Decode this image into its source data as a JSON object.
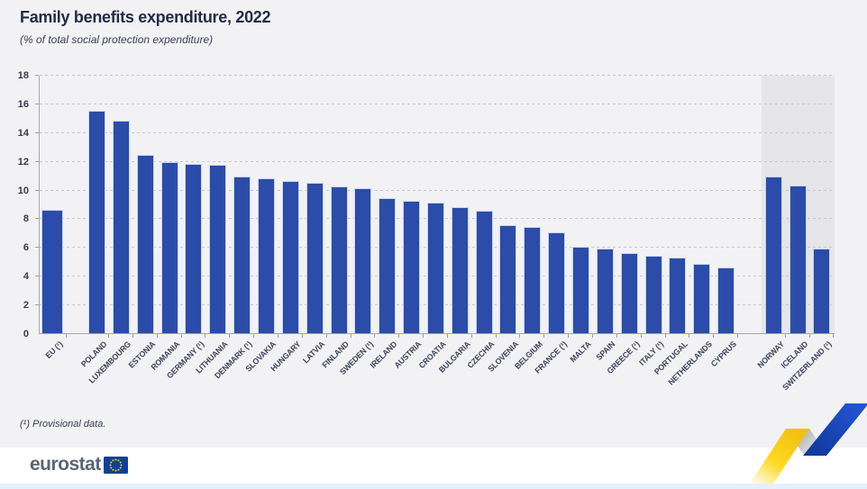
{
  "header": {
    "title": "Family benefits expenditure, 2022",
    "subtitle": "(% of total social protection expenditure)"
  },
  "chart_data": {
    "type": "bar",
    "title": "Family benefits expenditure, 2022",
    "subtitle": "(% of total social protection expenditure)",
    "ylabel": "% of total social protection expenditure",
    "xlabel": "",
    "ylim": [
      0,
      18
    ],
    "yticks": [
      0,
      2,
      4,
      6,
      8,
      10,
      12,
      14,
      16,
      18
    ],
    "grid": "horizontal-dashed",
    "legend": "none",
    "groups": [
      {
        "name": "eu-aggregate",
        "shaded": false,
        "bars": [
          {
            "label": "EU (¹)",
            "value": 8.6
          }
        ]
      },
      {
        "name": "eu-members",
        "shaded": false,
        "bars": [
          {
            "label": "POLAND",
            "value": 15.5
          },
          {
            "label": "LUXEMBOURG",
            "value": 14.8
          },
          {
            "label": "ESTONIA",
            "value": 12.4
          },
          {
            "label": "ROMANIA",
            "value": 11.9
          },
          {
            "label": "GERMANY (¹)",
            "value": 11.8
          },
          {
            "label": "LITHUANIA",
            "value": 11.7
          },
          {
            "label": "DENMARK (¹)",
            "value": 10.9
          },
          {
            "label": "SLOVAKIA",
            "value": 10.8
          },
          {
            "label": "HUNGARY",
            "value": 10.6
          },
          {
            "label": "LATVIA",
            "value": 10.5
          },
          {
            "label": "FINLAND",
            "value": 10.2
          },
          {
            "label": "SWEDEN (¹)",
            "value": 10.1
          },
          {
            "label": "IRELAND",
            "value": 9.4
          },
          {
            "label": "AUSTRIA",
            "value": 9.2
          },
          {
            "label": "CROATIA",
            "value": 9.1
          },
          {
            "label": "BULGARIA",
            "value": 8.8
          },
          {
            "label": "CZECHIA",
            "value": 8.5
          },
          {
            "label": "SLOVENIA",
            "value": 7.5
          },
          {
            "label": "BELGIUM",
            "value": 7.4
          },
          {
            "label": "FRANCE (¹)",
            "value": 7.0
          },
          {
            "label": "MALTA",
            "value": 6.0
          },
          {
            "label": "SPAIN",
            "value": 5.9
          },
          {
            "label": "GREECE (¹)",
            "value": 5.6
          },
          {
            "label": "ITALY (¹)",
            "value": 5.4
          },
          {
            "label": "PORTUGAL",
            "value": 5.3
          },
          {
            "label": "NETHERLANDS",
            "value": 4.8
          },
          {
            "label": "CYPRUS",
            "value": 4.6
          }
        ]
      },
      {
        "name": "non-eu",
        "shaded": true,
        "bars": [
          {
            "label": "NORWAY",
            "value": 10.9
          },
          {
            "label": "ICELAND",
            "value": 10.3
          },
          {
            "label": "SWITZERLAND (¹)",
            "value": 5.9
          }
        ]
      }
    ]
  },
  "footnote": "(¹) Provisional data.",
  "logo": {
    "text": "eurostat"
  },
  "colors": {
    "bar": "#2b4ca8",
    "shaded_band": "#e6e6e8",
    "page_background": "#f2f2f4",
    "bottom_strip": "#e4f1f9",
    "ribbon_yellow": "#ffd516",
    "ribbon_blue": "#1d4cc4",
    "flag_blue": "#0e4199",
    "flag_stars": "#ffcc00",
    "text_dark": "#222b45"
  }
}
